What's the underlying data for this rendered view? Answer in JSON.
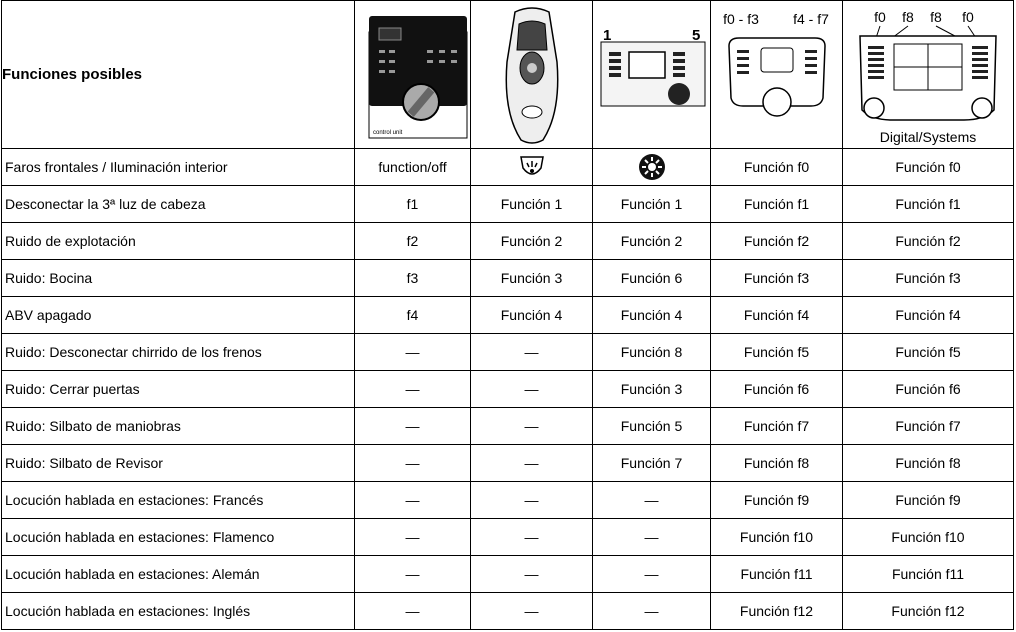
{
  "header": {
    "title": "Funciones posibles",
    "device1_label": "control unit",
    "device3_labels": [
      "1",
      "5"
    ],
    "device4_labels": [
      "f0 - f3",
      "f4 - f7"
    ],
    "device5_labels": [
      "f0",
      "f8",
      "f8",
      "f0"
    ],
    "device5_caption": "Digital/Systems"
  },
  "rows": [
    {
      "label": "Faros frontales /  Iluminación interior",
      "cells": [
        "function/off",
        null,
        null,
        "Función f0",
        "Función f0"
      ]
    },
    {
      "label": "Desconectar la 3ª luz de cabeza",
      "cells": [
        "f1",
        "Función 1",
        "Función 1",
        "Función f1",
        "Función f1"
      ]
    },
    {
      "label": "Ruido de explotación",
      "cells": [
        "f2",
        "Función 2",
        "Función 2",
        "Función f2",
        "Función f2"
      ]
    },
    {
      "label": "Ruido: Bocina",
      "cells": [
        "f3",
        "Función 3",
        "Función 6",
        "Función f3",
        "Función f3"
      ]
    },
    {
      "label": "ABV apagado",
      "cells": [
        "f4",
        "Función 4",
        "Función 4",
        "Función f4",
        "Función f4"
      ]
    },
    {
      "label": "Ruido: Desconectar chirrido de los frenos",
      "cells": [
        "—",
        "—",
        "Función 8",
        "Función f5",
        "Función f5"
      ]
    },
    {
      "label": "Ruido: Cerrar puertas",
      "cells": [
        "—",
        "—",
        "Función 3",
        "Función f6",
        "Función f6"
      ]
    },
    {
      "label": "Ruido: Silbato de maniobras",
      "cells": [
        "—",
        "—",
        "Función 5",
        "Función f7",
        "Función f7"
      ]
    },
    {
      "label": "Ruido: Silbato de Revisor",
      "cells": [
        "—",
        "—",
        "Función 7",
        "Función f8",
        "Función f8"
      ]
    },
    {
      "label": "Locución hablada en estaciones: Francés",
      "cells": [
        "—",
        "—",
        "—",
        "Función f9",
        "Función f9"
      ]
    },
    {
      "label": "Locución hablada en estaciones: Flamenco",
      "cells": [
        "—",
        "—",
        "—",
        "Función f10",
        "Función f10"
      ]
    },
    {
      "label": "Locución hablada en estaciones: Alemán",
      "cells": [
        "—",
        "—",
        "—",
        "Función f11",
        "Función f11"
      ]
    },
    {
      "label": "Locución hablada en estaciones: Inglés",
      "cells": [
        "—",
        "—",
        "—",
        "Función f12",
        "Función f12"
      ]
    }
  ]
}
